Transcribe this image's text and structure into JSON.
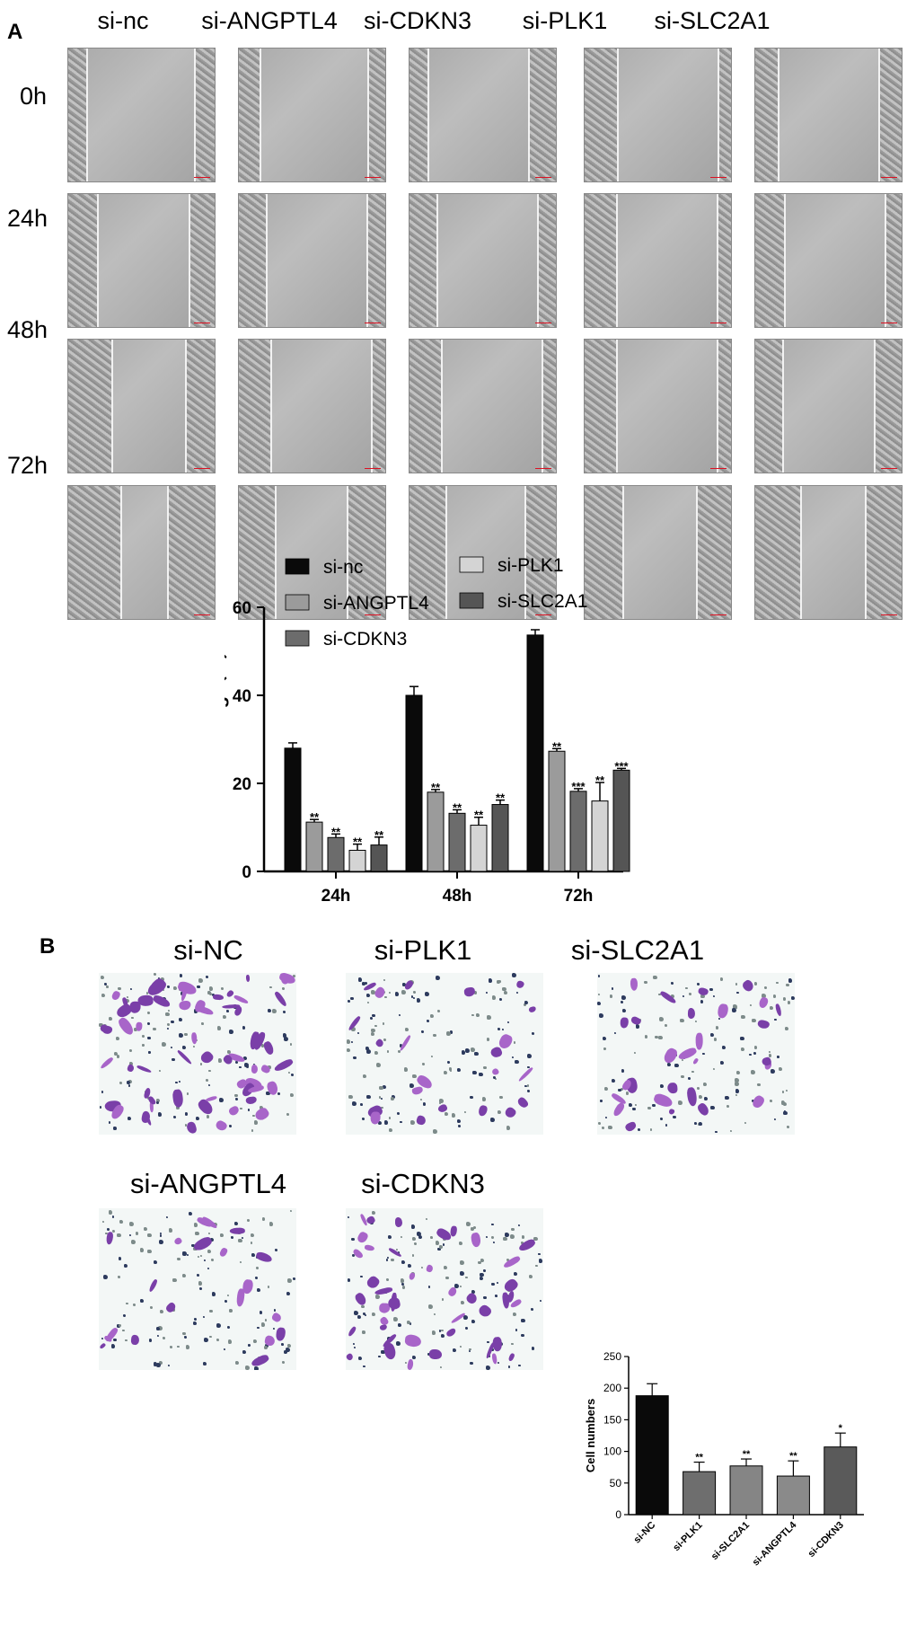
{
  "panel_a": {
    "label": "A",
    "columns": [
      "si-nc",
      "si-ANGPTL4",
      "si-CDKN3",
      "si-PLK1",
      "si-SLC2A1"
    ],
    "rows": [
      "0h",
      "24h",
      "48h",
      "72h"
    ]
  },
  "panel_b": {
    "label": "B",
    "images_top": [
      "si-NC",
      "si-PLK1",
      "si-SLC2A1"
    ],
    "images_bottom": [
      "si-ANGPTL4",
      "si-CDKN3"
    ]
  },
  "chart_data": [
    {
      "type": "bar",
      "ylabel": "Wound Healing（%）",
      "xlabel": "",
      "ylim": [
        0,
        60
      ],
      "yticks": [
        0,
        20,
        40,
        60
      ],
      "categories": [
        "24h",
        "48h",
        "72h"
      ],
      "legend": "top",
      "series": [
        {
          "name": "si-nc",
          "color": "#0a0a0a",
          "values": [
            28,
            40,
            53.7
          ],
          "errors": [
            1.2,
            2.0,
            1.2
          ],
          "sig": [
            "",
            "",
            ""
          ]
        },
        {
          "name": "si-ANGPTL4",
          "color": "#9b9b9b",
          "values": [
            11.2,
            18,
            27.3
          ],
          "errors": [
            0.6,
            0.6,
            0.6
          ],
          "sig": [
            "**",
            "**",
            "**"
          ]
        },
        {
          "name": "si-CDKN3",
          "color": "#6c6c6c",
          "values": [
            7.7,
            13.2,
            18.2
          ],
          "errors": [
            0.8,
            0.8,
            0.6
          ],
          "sig": [
            "**",
            "**",
            "***"
          ]
        },
        {
          "name": "si-PLK1",
          "color": "#d4d4d4",
          "values": [
            4.8,
            10.5,
            16
          ],
          "errors": [
            1.4,
            1.8,
            4.2
          ],
          "sig": [
            "**",
            "**",
            "**"
          ]
        },
        {
          "name": "si-SLC2A1",
          "color": "#555555",
          "values": [
            6,
            15.2,
            23
          ],
          "errors": [
            1.8,
            1.0,
            0.4
          ],
          "sig": [
            "**",
            "**",
            "***"
          ]
        }
      ]
    },
    {
      "type": "bar",
      "ylabel": "Cell numbers",
      "xlabel": "",
      "ylim": [
        0,
        250
      ],
      "yticks": [
        0,
        50,
        100,
        150,
        200,
        250
      ],
      "categories": [
        "si-NC",
        "si-PLK1",
        "si-SLC2A1",
        "si-ANGPTL4",
        "si-CDKN3"
      ],
      "values": [
        188,
        68,
        77,
        61,
        107
      ],
      "errors": [
        19,
        15,
        11,
        24,
        22
      ],
      "sig": [
        "",
        "**",
        "**",
        "**",
        "*"
      ],
      "colors": [
        "#0a0a0a",
        "#6e6e6e",
        "#858585",
        "#8a8a8a",
        "#5a5a5a"
      ]
    }
  ]
}
